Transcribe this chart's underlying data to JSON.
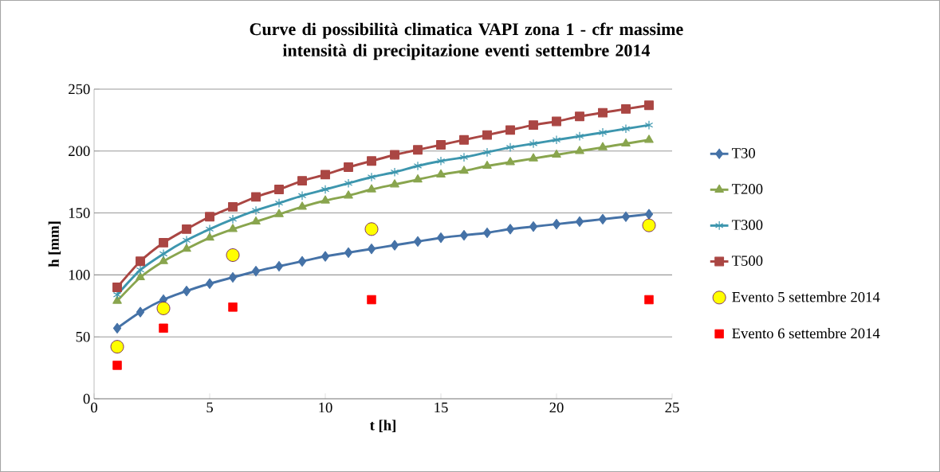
{
  "chart_data": {
    "type": "line",
    "title": "Curve di possibilità climatica VAPI zona 1 - cfr massime intensità di precipitazione eventi  settembre 2014",
    "xlabel": "t [h]",
    "ylabel": "h [mm]",
    "xlim": [
      0,
      25
    ],
    "xticks": [
      0,
      5,
      10,
      15,
      20,
      25
    ],
    "ylim": [
      0,
      250
    ],
    "yticks": [
      0,
      50,
      100,
      150,
      200,
      250
    ],
    "grid": "y",
    "legend": "right",
    "series": [
      {
        "name": "T30",
        "marker": "diamond",
        "color": "#4572a7",
        "x": [
          1,
          2,
          3,
          4,
          5,
          6,
          7,
          8,
          9,
          10,
          11,
          12,
          13,
          14,
          15,
          16,
          17,
          18,
          19,
          20,
          21,
          22,
          23,
          24
        ],
        "values": [
          57,
          70,
          80,
          87,
          93,
          98,
          103,
          107,
          111,
          115,
          118,
          121,
          124,
          127,
          130,
          132,
          134,
          137,
          139,
          141,
          143,
          145,
          147,
          149
        ]
      },
      {
        "name": "T200",
        "marker": "triangle",
        "color": "#89a54e",
        "x": [
          1,
          2,
          3,
          4,
          5,
          6,
          7,
          8,
          9,
          10,
          11,
          12,
          13,
          14,
          15,
          16,
          17,
          18,
          19,
          20,
          21,
          22,
          23,
          24
        ],
        "values": [
          79,
          98,
          111,
          121,
          130,
          137,
          143,
          149,
          155,
          160,
          164,
          169,
          173,
          177,
          181,
          184,
          188,
          191,
          194,
          197,
          200,
          203,
          206,
          209
        ]
      },
      {
        "name": "T300",
        "marker": "cross",
        "color": "#3d96ae",
        "x": [
          1,
          2,
          3,
          4,
          5,
          6,
          7,
          8,
          9,
          10,
          11,
          12,
          13,
          14,
          15,
          16,
          17,
          18,
          19,
          20,
          21,
          22,
          23,
          24
        ],
        "values": [
          84,
          104,
          117,
          128,
          137,
          145,
          152,
          158,
          164,
          169,
          174,
          179,
          183,
          188,
          192,
          195,
          199,
          203,
          206,
          209,
          212,
          215,
          218,
          221
        ]
      },
      {
        "name": "T500",
        "marker": "square",
        "color": "#aa4643",
        "x": [
          1,
          2,
          3,
          4,
          5,
          6,
          7,
          8,
          9,
          10,
          11,
          12,
          13,
          14,
          15,
          16,
          17,
          18,
          19,
          20,
          21,
          22,
          23,
          24
        ],
        "values": [
          90,
          111,
          126,
          137,
          147,
          155,
          163,
          169,
          176,
          181,
          187,
          192,
          197,
          201,
          205,
          209,
          213,
          217,
          221,
          224,
          228,
          231,
          234,
          237
        ]
      },
      {
        "name": "Evento 5 settembre 2014",
        "type": "scatter",
        "marker": "circle",
        "color": "#ffff00",
        "x": [
          1,
          3,
          6,
          12,
          24
        ],
        "values": [
          42,
          73,
          116,
          137,
          140
        ]
      },
      {
        "name": "Evento 6 settembre 2014",
        "type": "scatter",
        "marker": "square",
        "color": "#ff0000",
        "x": [
          1,
          3,
          6,
          12,
          24
        ],
        "values": [
          27,
          57,
          74,
          80,
          80
        ]
      }
    ]
  }
}
